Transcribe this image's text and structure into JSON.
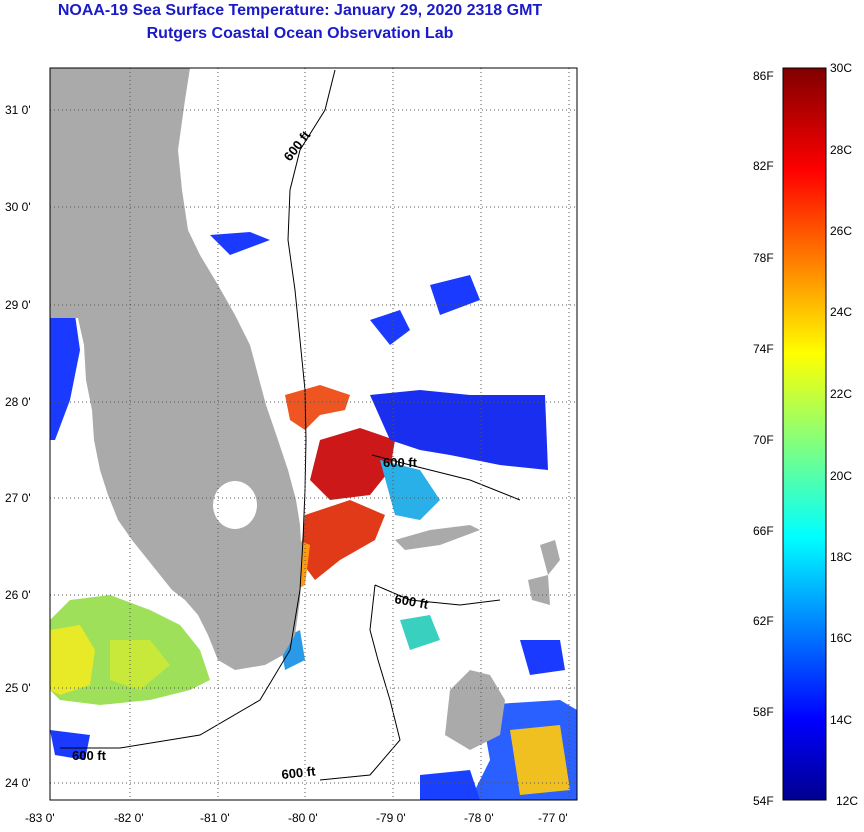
{
  "title": "NOAA-19 Sea Surface Temperature:  January 29, 2020 2318 GMT",
  "subtitle": "Rutgers Coastal Ocean Observation Lab",
  "lat_labels": [
    "31 0'",
    "30 0'",
    "29 0'",
    "28 0'",
    "27 0'",
    "26 0'",
    "25 0'",
    "24 0'"
  ],
  "lon_labels": [
    "-83 0'",
    "-82 0'",
    "-81 0'",
    "-80 0'",
    "-79 0'",
    "-78 0'",
    "-77 0'"
  ],
  "contour_labels": [
    "600 ft",
    "600 ft",
    "600 ft",
    "600 ft",
    "600 ft"
  ],
  "colorbar": {
    "fahrenheit": [
      "86F",
      "82F",
      "78F",
      "74F",
      "70F",
      "66F",
      "62F",
      "58F",
      "54F"
    ],
    "celsius": [
      "30C",
      "28C",
      "26C",
      "24C",
      "22C",
      "20C",
      "18C",
      "16C",
      "14C",
      "12C"
    ]
  },
  "colors": {
    "land": "#aaaaaa",
    "title": "#1a1ac8"
  }
}
